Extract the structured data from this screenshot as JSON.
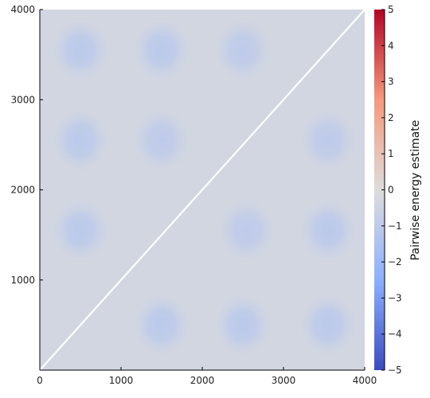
{
  "chart_data": {
    "type": "heatmap",
    "title": "",
    "xlabel": "",
    "ylabel": "",
    "xlim": [
      0,
      4000
    ],
    "ylim": [
      0,
      4000
    ],
    "x_ticks": [
      0,
      1000,
      2000,
      3000,
      4000
    ],
    "y_ticks": [
      1000,
      2000,
      3000,
      4000
    ],
    "colorscale": "coolwarm",
    "colorscale_stops": [
      {
        "value": -5,
        "color": "#3b4cc0"
      },
      {
        "value": -2.5,
        "color": "#8db0fe"
      },
      {
        "value": 0,
        "color": "#dddcdc"
      },
      {
        "value": 2.5,
        "color": "#f49a7b"
      },
      {
        "value": 5,
        "color": "#b40426"
      }
    ],
    "colorbar": {
      "label": "Pairwise energy estimate",
      "range": [
        -5,
        5
      ],
      "ticks": [
        -5,
        -4,
        -3,
        -2,
        -1,
        0,
        1,
        2,
        3,
        4,
        5
      ]
    },
    "background_value": -0.35,
    "diagonal_line": {
      "from": [
        0,
        0
      ],
      "to": [
        4000,
        4000
      ],
      "color": "#ffffff"
    },
    "blobs": [
      {
        "x": 500,
        "y": 3550,
        "value": -1.1
      },
      {
        "x": 1500,
        "y": 3550,
        "value": -1.1
      },
      {
        "x": 2500,
        "y": 3550,
        "value": -1.0
      },
      {
        "x": 500,
        "y": 2550,
        "value": -1.1
      },
      {
        "x": 1500,
        "y": 2550,
        "value": -1.0
      },
      {
        "x": 3550,
        "y": 2550,
        "value": -1.0
      },
      {
        "x": 500,
        "y": 1550,
        "value": -1.1
      },
      {
        "x": 2550,
        "y": 1550,
        "value": -1.0
      },
      {
        "x": 3550,
        "y": 1550,
        "value": -1.1
      },
      {
        "x": 1500,
        "y": 500,
        "value": -1.1
      },
      {
        "x": 2500,
        "y": 500,
        "value": -1.1
      },
      {
        "x": 3550,
        "y": 500,
        "value": -1.1
      }
    ],
    "blob_radius": 380,
    "legend": "none",
    "grid": false
  }
}
